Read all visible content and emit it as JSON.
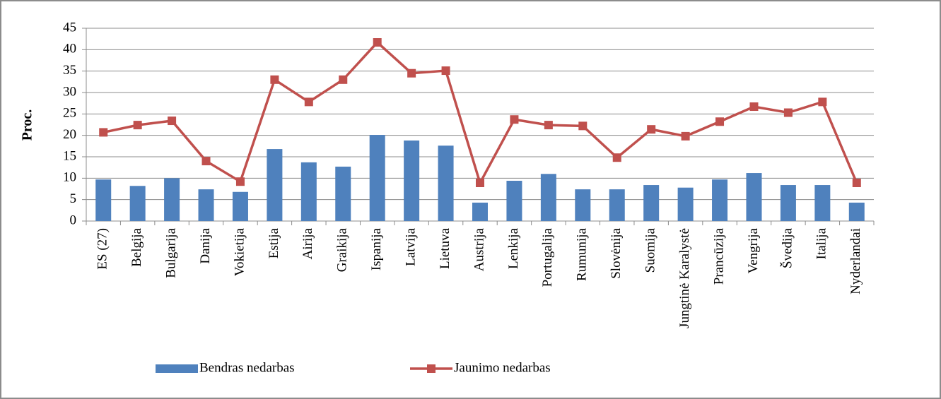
{
  "chart_data": {
    "type": "bar_line",
    "y_label": "Proc.",
    "categories": [
      "ES (27)",
      "Belgija",
      "Bulgarija",
      "Danija",
      "Vokietija",
      "Estija",
      "Airija",
      "Graikija",
      "Ispanija",
      "Latvija",
      "Lietuva",
      "Austrija",
      "Lenkija",
      "Portugalija",
      "Rumunija",
      "Slovėnija",
      "Suomija",
      "Jungtinė Karalystė",
      "Prancūzija",
      "Vengrija",
      "Švedija",
      "Italija",
      "Nyderlandai"
    ],
    "series": [
      {
        "name": "Bendras nedarbas",
        "type": "bar",
        "color": "#4f81bd",
        "values": [
          9.7,
          8.2,
          10.0,
          7.4,
          6.8,
          16.8,
          13.7,
          12.7,
          20.1,
          18.8,
          17.6,
          4.3,
          9.4,
          11.0,
          7.4,
          7.4,
          8.4,
          7.8,
          9.7,
          11.2,
          8.4,
          8.4,
          4.3
        ]
      },
      {
        "name": "Jaunimo nedarbas",
        "type": "line",
        "color": "#c0504d",
        "values": [
          20.7,
          22.4,
          23.4,
          14.0,
          9.2,
          33.0,
          27.8,
          33.0,
          41.7,
          34.5,
          35.1,
          8.9,
          23.7,
          22.4,
          22.2,
          14.8,
          21.4,
          19.8,
          23.2,
          26.7,
          25.3,
          27.8,
          8.9
        ]
      }
    ],
    "ylim": [
      0,
      45
    ],
    "yticks": [
      0,
      5,
      10,
      15,
      20,
      25,
      30,
      35,
      40,
      45
    ],
    "grid": true,
    "legend": "bottom"
  }
}
